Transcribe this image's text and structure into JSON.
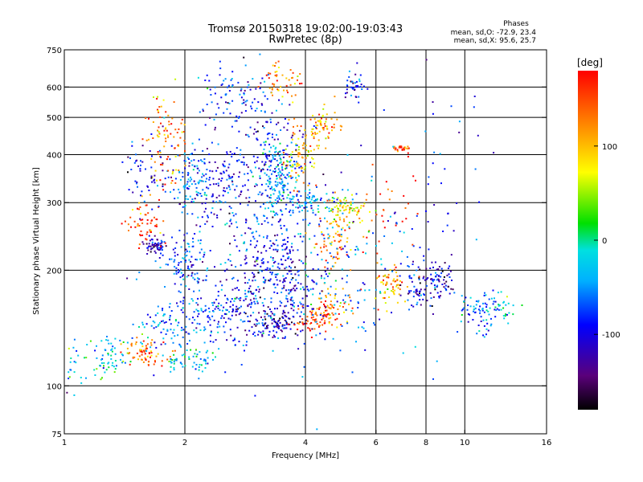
{
  "chart_data": {
    "type": "scatter",
    "title": "Tromsø 20150318 19:02:00-19:03:43",
    "subtitle": "RwPretec (8p)",
    "xlabel": "Frequency [MHz]",
    "ylabel": "Stationary phase Virtual Height [km]",
    "x_scale": "log",
    "y_scale": "log",
    "xlim": [
      1,
      16
    ],
    "ylim": [
      75,
      750
    ],
    "x_ticks": [
      1,
      2,
      4,
      6,
      8,
      10,
      16
    ],
    "y_ticks": [
      75,
      100,
      200,
      300,
      400,
      500,
      600,
      750
    ],
    "grid": true,
    "phases_box": {
      "title": "Phases",
      "line1": "mean, sd,O: -72.9, 23.4",
      "line2": "mean, sd,X:  95.6, 25.7"
    },
    "colorbar": {
      "label": "[deg]",
      "ticks": [
        100,
        0,
        -100
      ],
      "range": [
        -180,
        180
      ]
    },
    "clusters": [
      {
        "f": 1.05,
        "h": 115,
        "df": 0.04,
        "dh": 0.08,
        "n": 30,
        "phase": -40
      },
      {
        "f": 1.3,
        "h": 118,
        "df": 0.06,
        "dh": 0.06,
        "n": 60,
        "phase": -20
      },
      {
        "f": 1.6,
        "h": 122,
        "df": 0.06,
        "dh": 0.05,
        "n": 70,
        "phase": 140
      },
      {
        "f": 2.1,
        "h": 118,
        "df": 0.07,
        "dh": 0.04,
        "n": 60,
        "phase": -30
      },
      {
        "f": 1.8,
        "h": 145,
        "df": 0.08,
        "dh": 0.08,
        "n": 80,
        "phase": -70
      },
      {
        "f": 2.3,
        "h": 150,
        "df": 0.09,
        "dh": 0.08,
        "n": 90,
        "phase": -70
      },
      {
        "f": 2.8,
        "h": 160,
        "df": 0.07,
        "dh": 0.1,
        "n": 80,
        "phase": -90
      },
      {
        "f": 3.4,
        "h": 145,
        "df": 0.07,
        "dh": 0.04,
        "n": 90,
        "phase": -120
      },
      {
        "f": 4.3,
        "h": 150,
        "df": 0.06,
        "dh": 0.05,
        "n": 70,
        "phase": 160
      },
      {
        "f": 4.7,
        "h": 162,
        "df": 0.05,
        "dh": 0.05,
        "n": 50,
        "phase": 110
      },
      {
        "f": 3.6,
        "h": 175,
        "df": 0.1,
        "dh": 0.1,
        "n": 140,
        "phase": -100
      },
      {
        "f": 2.0,
        "h": 210,
        "df": 0.07,
        "dh": 0.1,
        "n": 100,
        "phase": -60
      },
      {
        "f": 1.7,
        "h": 232,
        "df": 0.03,
        "dh": 0.03,
        "n": 60,
        "phase": -110
      },
      {
        "f": 1.6,
        "h": 270,
        "df": 0.05,
        "dh": 0.1,
        "n": 60,
        "phase": 150
      },
      {
        "f": 3.2,
        "h": 225,
        "df": 0.09,
        "dh": 0.1,
        "n": 100,
        "phase": -90
      },
      {
        "f": 4.7,
        "h": 245,
        "df": 0.05,
        "dh": 0.1,
        "n": 70,
        "phase": 120
      },
      {
        "f": 2.1,
        "h": 340,
        "df": 0.07,
        "dh": 0.1,
        "n": 110,
        "phase": -60
      },
      {
        "f": 2.6,
        "h": 330,
        "df": 0.09,
        "dh": 0.12,
        "n": 110,
        "phase": -90
      },
      {
        "f": 3.4,
        "h": 350,
        "df": 0.05,
        "dh": 0.1,
        "n": 140,
        "phase": -40
      },
      {
        "f": 4.0,
        "h": 300,
        "df": 0.1,
        "dh": 0.04,
        "n": 90,
        "phase": -50
      },
      {
        "f": 5.1,
        "h": 290,
        "df": 0.06,
        "dh": 0.04,
        "n": 70,
        "phase": 80
      },
      {
        "f": 3.9,
        "h": 400,
        "df": 0.05,
        "dh": 0.1,
        "n": 90,
        "phase": 100
      },
      {
        "f": 4.5,
        "h": 480,
        "df": 0.05,
        "dh": 0.06,
        "n": 60,
        "phase": 110
      },
      {
        "f": 3.3,
        "h": 440,
        "df": 0.08,
        "dh": 0.1,
        "n": 80,
        "phase": -90
      },
      {
        "f": 2.6,
        "h": 560,
        "df": 0.12,
        "dh": 0.1,
        "n": 100,
        "phase": -80
      },
      {
        "f": 1.8,
        "h": 440,
        "df": 0.06,
        "dh": 0.15,
        "n": 90,
        "phase": 130
      },
      {
        "f": 1.6,
        "h": 360,
        "df": 0.06,
        "dh": 0.1,
        "n": 50,
        "phase": -100
      },
      {
        "f": 3.5,
        "h": 620,
        "df": 0.06,
        "dh": 0.05,
        "n": 50,
        "phase": 130
      },
      {
        "f": 5.3,
        "h": 600,
        "df": 0.03,
        "dh": 0.05,
        "n": 40,
        "phase": -80
      },
      {
        "f": 6.5,
        "h": 185,
        "df": 0.04,
        "dh": 0.06,
        "n": 60,
        "phase": 110
      },
      {
        "f": 7.6,
        "h": 180,
        "df": 0.05,
        "dh": 0.07,
        "n": 60,
        "phase": -100
      },
      {
        "f": 8.6,
        "h": 190,
        "df": 0.04,
        "dh": 0.05,
        "n": 70,
        "phase": -110
      },
      {
        "f": 10.8,
        "h": 155,
        "df": 0.06,
        "dh": 0.06,
        "n": 60,
        "phase": -60
      },
      {
        "f": 12.2,
        "h": 160,
        "df": 0.06,
        "dh": 0.06,
        "n": 40,
        "phase": -30
      },
      {
        "f": 7.0,
        "h": 415,
        "df": 0.03,
        "dh": 0.01,
        "n": 25,
        "phase": 150
      },
      {
        "f": 9.0,
        "h": 330,
        "df": 0.2,
        "dh": 0.3,
        "n": 40,
        "phase": -90
      },
      {
        "f": 6.5,
        "h": 260,
        "df": 0.1,
        "dh": 0.2,
        "n": 40,
        "phase": 160
      },
      {
        "f": 2.9,
        "h": 250,
        "df": 0.3,
        "dh": 0.35,
        "n": 200,
        "phase": -80
      },
      {
        "f": 4.5,
        "h": 200,
        "df": 0.3,
        "dh": 0.3,
        "n": 200,
        "phase": -50
      }
    ]
  }
}
